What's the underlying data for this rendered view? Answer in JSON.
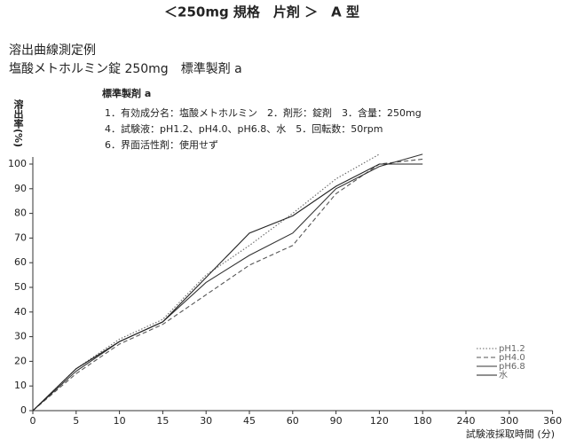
{
  "chart_data": {
    "type": "line",
    "title": "＜250mg 規格　片剤 ＞　A 型",
    "subtitle": [
      "溶出曲線測定例",
      "塩酸メトホルミン錠 250mg　標準製剤 a"
    ],
    "annotations": [
      "標準製剤 a",
      "1．有効成分名：塩酸メトホルミン　2．剤形：錠剤　3．含量：250mg",
      "4．試験液：pH1.2、pH4.0、pH6.8、水　5．回転数：50rpm",
      "6．界面活性剤：使用せず"
    ],
    "y_label": "溶出率(%)",
    "x_label": "試験液採取時間 (分)",
    "categories": [
      0,
      5,
      10,
      15,
      30,
      45,
      60,
      90,
      120,
      180,
      240,
      300,
      360
    ],
    "series": [
      {
        "name": "pH1.2",
        "color": "#666666",
        "dash": "dotted",
        "values": [
          0,
          17,
          29,
          37,
          55,
          67,
          80,
          94,
          104,
          null,
          null,
          null,
          null
        ]
      },
      {
        "name": "pH4.0",
        "color": "#555555",
        "dash": "dashed",
        "values": [
          0,
          15,
          27,
          35,
          47,
          59,
          67,
          88,
          100,
          102,
          null,
          null,
          null
        ]
      },
      {
        "name": "pH6.8",
        "color": "#333333",
        "dash": "solid",
        "values": [
          0,
          16,
          28,
          36,
          52,
          63,
          72,
          90,
          99,
          104,
          null,
          null,
          null
        ]
      },
      {
        "name": "水",
        "color": "#222222",
        "dash": "solid",
        "values": [
          0,
          17,
          28,
          36,
          54,
          72,
          79,
          91,
          100,
          100,
          null,
          null,
          null
        ]
      }
    ],
    "ylim": [
      0,
      100
    ],
    "yticks": [
      0,
      10,
      20,
      30,
      40,
      50,
      60,
      70,
      80,
      90,
      100
    ],
    "legend": "lower right"
  }
}
